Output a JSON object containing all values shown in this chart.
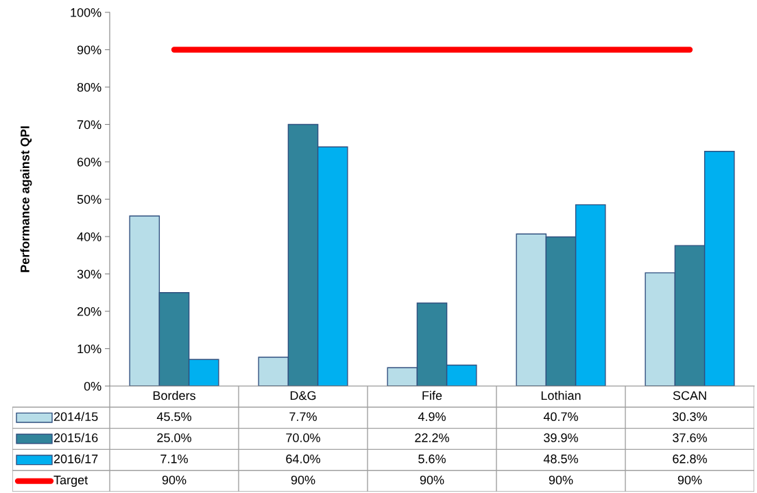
{
  "chart_data": {
    "type": "bar",
    "ylabel": "Performance against QPI",
    "categories": [
      "Borders",
      "D&G",
      "Fife",
      "Lothian",
      "SCAN"
    ],
    "series": [
      {
        "name": "2014/15",
        "color": "#b7dde8",
        "values": [
          45.5,
          7.7,
          4.9,
          40.7,
          30.3
        ],
        "value_labels": [
          "45.5%",
          "7.7%",
          "4.9%",
          "40.7%",
          "30.3%"
        ]
      },
      {
        "name": "2015/16",
        "color": "#31849b",
        "values": [
          25.0,
          70.0,
          22.2,
          39.9,
          37.6
        ],
        "value_labels": [
          "25.0%",
          "70.0%",
          "22.2%",
          "39.9%",
          "37.6%"
        ]
      },
      {
        "name": "2016/17",
        "color": "#00b0f0",
        "values": [
          7.1,
          64.0,
          5.6,
          48.5,
          62.8
        ],
        "value_labels": [
          "7.1%",
          "64.0%",
          "5.6%",
          "48.5%",
          "62.8%"
        ]
      },
      {
        "name": "Target",
        "type": "line",
        "color": "#ff0000",
        "values": [
          90,
          90,
          90,
          90,
          90
        ],
        "value_labels": [
          "90%",
          "90%",
          "90%",
          "90%",
          "90%"
        ]
      }
    ],
    "ylim": [
      0,
      100
    ],
    "yticks": [
      {
        "value": 0,
        "label": "0%"
      },
      {
        "value": 10,
        "label": "10%"
      },
      {
        "value": 20,
        "label": "20%"
      },
      {
        "value": 30,
        "label": "30%"
      },
      {
        "value": 40,
        "label": "40%"
      },
      {
        "value": 50,
        "label": "50%"
      },
      {
        "value": 60,
        "label": "60%"
      },
      {
        "value": 70,
        "label": "70%"
      },
      {
        "value": 80,
        "label": "80%"
      },
      {
        "value": 90,
        "label": "90%"
      },
      {
        "value": 100,
        "label": "100%"
      }
    ],
    "grid": false,
    "legend": "bottom"
  }
}
